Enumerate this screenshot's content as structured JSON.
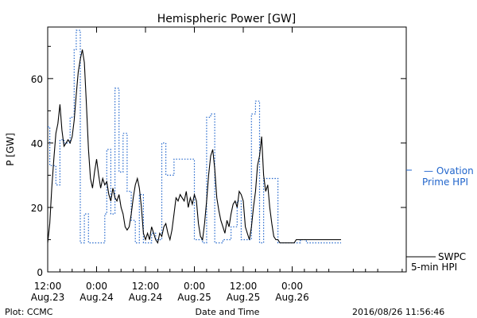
{
  "chart_data": {
    "type": "line",
    "title": "Hemispheric Power [GW]",
    "ylabel": "P [GW]",
    "xlabel": "Date and Time",
    "ylim": [
      0,
      76
    ],
    "xlim": [
      0,
      88
    ],
    "x_unit": "hours since 2016-08-23 12:00 UT",
    "y_ticks": [
      0,
      20,
      40,
      60
    ],
    "x_ticks": [
      {
        "x": 0,
        "line1": "12:00",
        "line2": "Aug.23"
      },
      {
        "x": 12,
        "line1": "0:00",
        "line2": "Aug.24"
      },
      {
        "x": 24,
        "line1": "12:00",
        "line2": "Aug.24"
      },
      {
        "x": 36,
        "line1": "0:00",
        "line2": "Aug.25"
      },
      {
        "x": 48,
        "line1": "12:00",
        "line2": "Aug.25"
      },
      {
        "x": 60,
        "line1": "0:00",
        "line2": "Aug.26"
      }
    ],
    "series": [
      {
        "name": "SWPC 5-min HPI",
        "style": "solid",
        "color": "#000000",
        "legend_line1": "SWPC",
        "legend_line2": "5-min HPI",
        "x": [
          0,
          0.5,
          1,
          1.5,
          2,
          2.5,
          3,
          3.5,
          4,
          4.5,
          5,
          5.5,
          6,
          6.5,
          7,
          7.5,
          8,
          8.5,
          9,
          9.5,
          10,
          10.5,
          11,
          11.5,
          12,
          12.5,
          13,
          13.5,
          14,
          14.5,
          15,
          15.5,
          16,
          16.5,
          17,
          17.5,
          18,
          18.5,
          19,
          19.5,
          20,
          20.5,
          21,
          21.5,
          22,
          22.5,
          23,
          23.5,
          24,
          24.5,
          25,
          25.5,
          26,
          26.5,
          27,
          27.5,
          28,
          28.5,
          29,
          29.5,
          30,
          30.5,
          31,
          31.5,
          32,
          32.5,
          33,
          33.5,
          34,
          34.5,
          35,
          35.5,
          36,
          36.5,
          37,
          37.5,
          38,
          38.5,
          39,
          39.5,
          40,
          40.5,
          41,
          41.5,
          42,
          42.5,
          43,
          43.5,
          44,
          44.5,
          45,
          45.5,
          46,
          46.5,
          47,
          47.5,
          48,
          48.5,
          49,
          49.5,
          50,
          50.5,
          51,
          51.5,
          52,
          52.5,
          53,
          53.5,
          54,
          54.5,
          55,
          55.5,
          56,
          56.5,
          57,
          57.5,
          58,
          58.5,
          59,
          59.5,
          60,
          60.5,
          61,
          61.5,
          62,
          62.5,
          63,
          63.5,
          64,
          64.5,
          65,
          65.5,
          66,
          66.5,
          67,
          67.5,
          68,
          68.5,
          69,
          69.5,
          70,
          70.5,
          71,
          71.5,
          72
        ],
        "y": [
          9,
          15,
          26,
          35,
          43,
          46,
          52,
          44,
          39,
          40,
          41,
          40,
          42,
          47,
          55,
          62,
          66,
          69,
          65,
          52,
          38,
          29,
          26,
          31,
          35,
          30,
          26,
          29,
          27,
          28,
          24,
          22,
          26,
          23,
          22,
          24,
          20,
          18,
          14,
          13,
          14,
          18,
          23,
          27,
          29,
          26,
          20,
          12,
          10,
          12,
          10,
          14,
          12,
          10,
          9,
          12,
          11,
          14,
          15,
          12,
          10,
          13,
          18,
          23,
          22,
          24,
          23,
          22,
          25,
          20,
          23,
          21,
          24,
          22,
          15,
          11,
          10,
          15,
          22,
          30,
          36,
          38,
          32,
          23,
          19,
          16,
          14,
          12,
          16,
          14,
          18,
          21,
          22,
          20,
          25,
          24,
          22,
          14,
          12,
          10,
          14,
          20,
          25,
          33,
          36,
          42,
          30,
          25,
          27,
          20,
          15,
          11,
          10,
          10,
          9,
          9,
          9,
          9,
          9,
          9,
          9,
          9,
          10,
          10,
          10,
          10,
          10,
          10,
          10,
          10,
          10,
          10,
          10,
          10,
          10,
          10,
          10,
          10,
          10,
          10,
          10,
          10,
          10,
          10,
          10
        ]
      },
      {
        "name": "Ovation Prime HPI",
        "style": "dotted",
        "color": "#2266cc",
        "legend_line1": "— Ovation",
        "legend_line2": "Prime HPI",
        "x": [
          0,
          0.5,
          1,
          1.5,
          2,
          2.5,
          3,
          3.5,
          4,
          4.5,
          5,
          5.5,
          6,
          6.5,
          7,
          7.5,
          8,
          8.5,
          9,
          9.5,
          10,
          10.5,
          11,
          11.5,
          12,
          12.5,
          13,
          13.5,
          14,
          14.5,
          15,
          15.5,
          16,
          16.5,
          17,
          17.5,
          18,
          18.5,
          19,
          19.5,
          20,
          20.5,
          21,
          21.5,
          22,
          22.5,
          23,
          23.5,
          24,
          24.5,
          25,
          25.5,
          26,
          26.5,
          27,
          27.5,
          28,
          28.5,
          29,
          29.5,
          30,
          30.5,
          31,
          31.5,
          32,
          32.5,
          33,
          33.5,
          34,
          34.5,
          35,
          35.5,
          36,
          36.5,
          37,
          37.5,
          38,
          38.5,
          39,
          39.5,
          40,
          40.5,
          41,
          41.5,
          42,
          42.5,
          43,
          43.5,
          44,
          44.5,
          45,
          45.5,
          46,
          46.5,
          47,
          47.5,
          48,
          48.5,
          49,
          49.5,
          50,
          50.5,
          51,
          51.5,
          52,
          52.5,
          53,
          53.5,
          54,
          54.5,
          55,
          55.5,
          56,
          56.5,
          57,
          57.5,
          58,
          58.5,
          59,
          59.5,
          60,
          60.5,
          61,
          61.5,
          62,
          62.5,
          63,
          63.5,
          64,
          64.5,
          65,
          65.5,
          66,
          66.5,
          67,
          67.5,
          68,
          68.5,
          69,
          69.5,
          70,
          70.5,
          71,
          71.5,
          72
        ],
        "y": [
          45,
          33,
          33,
          33,
          27,
          27,
          41,
          41,
          40,
          40,
          40,
          48,
          48,
          69,
          75,
          75,
          9,
          9,
          18,
          18,
          9,
          9,
          9,
          9,
          9,
          9,
          9,
          9,
          18,
          38,
          38,
          18,
          18,
          57,
          57,
          31,
          31,
          43,
          43,
          25,
          25,
          16,
          16,
          9,
          9,
          24,
          24,
          9,
          9,
          9,
          9,
          12,
          12,
          10,
          10,
          10,
          40,
          40,
          30,
          30,
          30,
          30,
          35,
          35,
          35,
          35,
          35,
          35,
          35,
          35,
          35,
          35,
          10,
          10,
          10,
          10,
          9,
          9,
          48,
          48,
          49,
          49,
          9,
          9,
          9,
          9,
          10,
          10,
          10,
          10,
          14,
          14,
          14,
          22,
          22,
          10,
          10,
          10,
          10,
          10,
          49,
          49,
          53,
          53,
          9,
          9,
          29,
          29,
          29,
          29,
          29,
          29,
          29,
          9,
          9,
          9,
          9,
          9,
          9,
          9,
          9,
          9,
          9,
          9,
          10,
          10,
          10,
          9,
          9,
          9,
          9,
          9,
          9,
          9,
          9,
          9,
          9,
          9,
          9,
          9,
          9,
          9,
          9,
          9,
          9
        ]
      }
    ]
  },
  "footer": {
    "left": "Plot: CCMC",
    "center": "Date and Time",
    "right": "2016/08/26 11:56:46"
  }
}
